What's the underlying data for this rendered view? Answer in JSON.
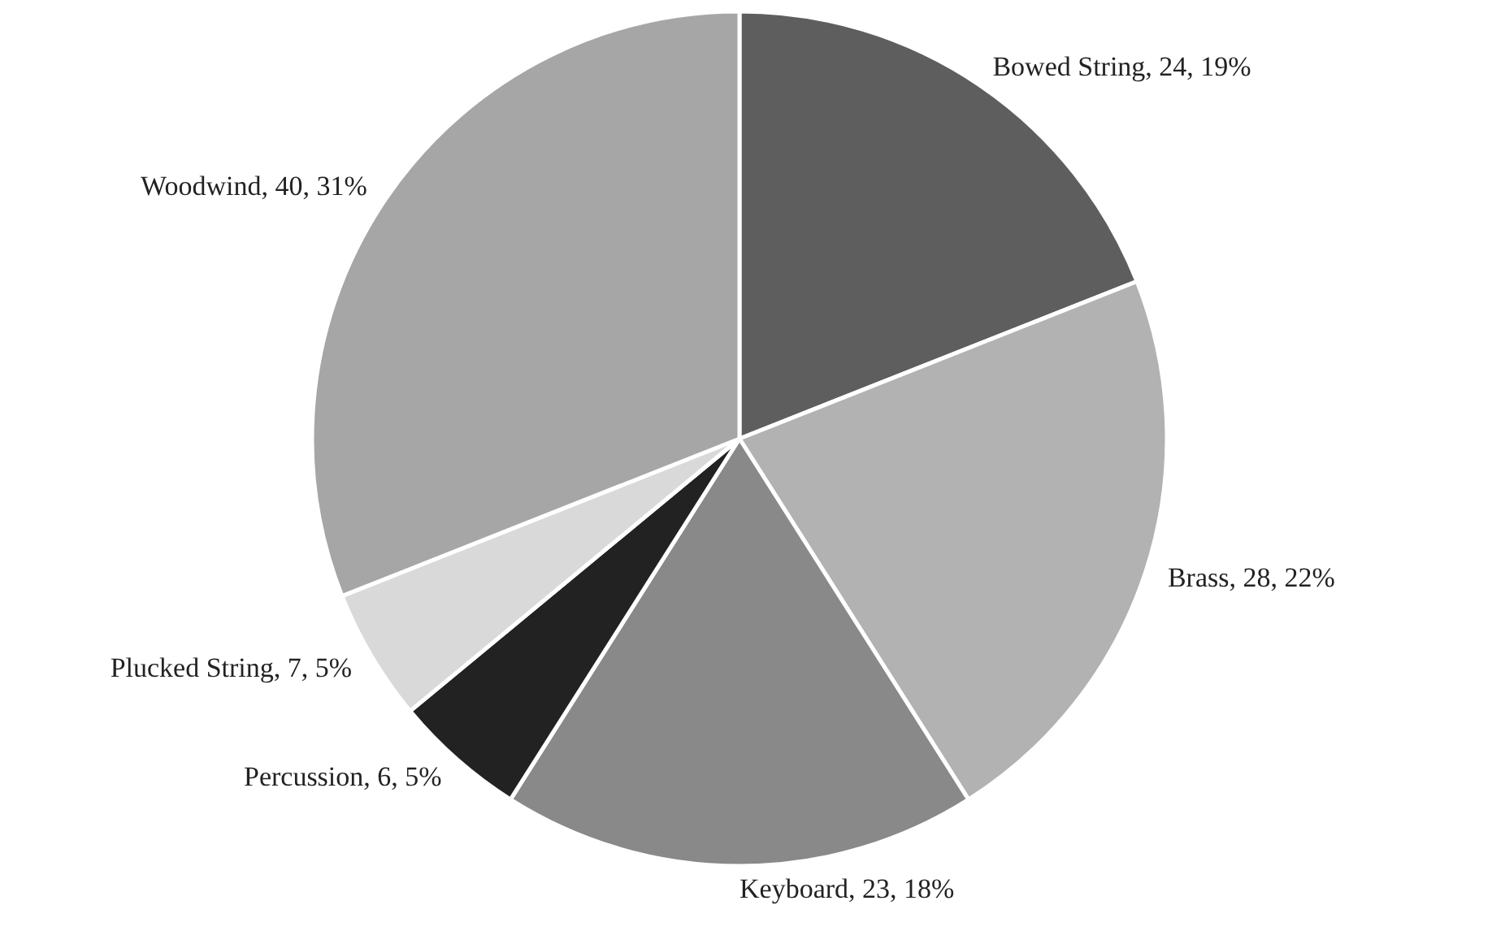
{
  "chart_data": {
    "type": "pie",
    "categories": [
      "Bowed String",
      "Brass",
      "Keyboard",
      "Percussion",
      "Plucked String",
      "Woodwind"
    ],
    "values": [
      19,
      22,
      18,
      5,
      5,
      31
    ],
    "value_labels": [
      "24, 19%",
      "28, 22%",
      "23, 18%",
      "6, 5%",
      "7, 5%",
      "40, 31%"
    ],
    "colors": [
      "#5e5e5e",
      "#b2b2b2",
      "#898989",
      "#222222",
      "#d9d9d9",
      "#a6a6a6"
    ]
  }
}
